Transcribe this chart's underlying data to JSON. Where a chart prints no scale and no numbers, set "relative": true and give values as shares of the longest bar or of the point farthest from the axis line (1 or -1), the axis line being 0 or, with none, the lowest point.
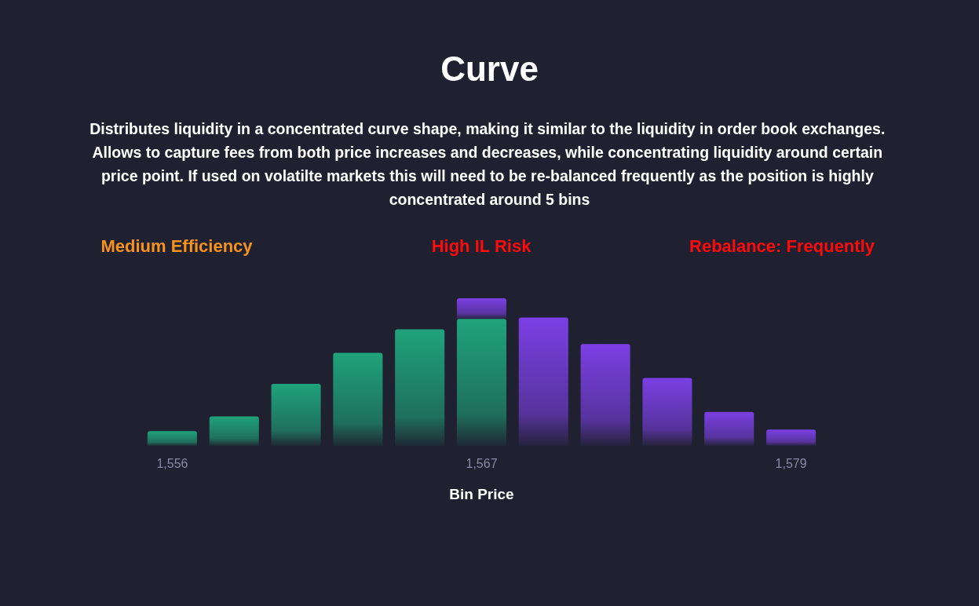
{
  "chart_data": {
    "type": "bar",
    "title": "Curve",
    "subtitle": "Distributes liquidity in a concentrated curve shape, making it similar to the liquidity in order book exchanges. Allows to capture fees from both price increases and decreases, while concentrating liquidity around certain price point. If used on volatilte markets this will need to be re-balanced frequently as the position is highly concentrated around 5 bins",
    "annotations": [
      "Medium Efficiency",
      "High IL Risk",
      "Rebalance: Frequently"
    ],
    "xlabel": "Bin Price",
    "relative": true,
    "stacked": true,
    "grid": false,
    "categories": [
      "1,556",
      null,
      null,
      null,
      null,
      "1,567",
      null,
      null,
      null,
      null,
      "1,579"
    ],
    "series": [
      {
        "color": "#1fa37a",
        "values": [
          0.1,
          0.2,
          0.42,
          0.63,
          0.79,
          0.86,
          null,
          null,
          null,
          null,
          null
        ]
      },
      {
        "color": "#7b3fe4",
        "values": [
          null,
          null,
          null,
          null,
          null,
          0.14,
          0.87,
          0.69,
          0.46,
          0.23,
          0.11
        ]
      }
    ]
  }
}
